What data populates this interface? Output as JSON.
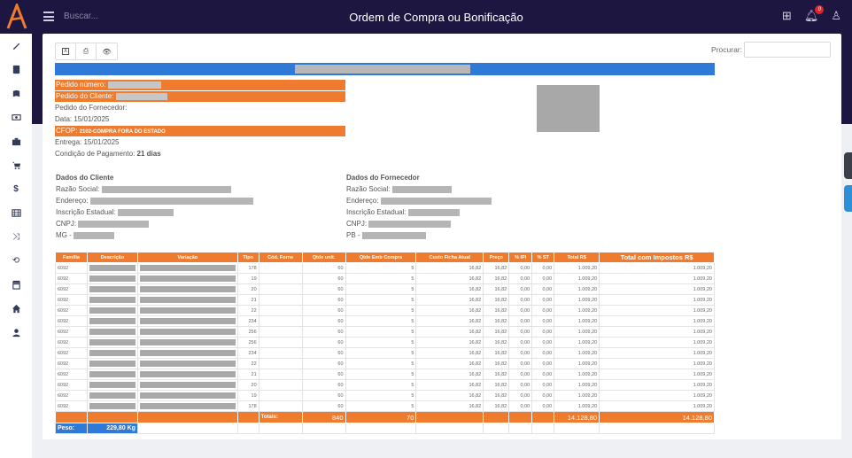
{
  "app": {
    "title": "Ordem de Compra ou Bonificação",
    "search_placeholder": "Buscar...",
    "notification_count": "0"
  },
  "sidebar": {
    "items": [
      "wrench-icon",
      "calculator-icon",
      "book-icon",
      "money-icon",
      "briefcase-icon",
      "cart-icon",
      "dollar-icon",
      "table-icon",
      "shuffle-icon",
      "retweet-icon",
      "store-icon",
      "home-icon",
      "user-icon"
    ]
  },
  "toolbar": {
    "excel_label": "X",
    "print_label": "⎙",
    "view_label": "👁",
    "search_label": "Procurar:"
  },
  "order": {
    "pedido_numero_label": "Pedido número:",
    "pedido_cliente_label": "Pedido do Cliente:",
    "pedido_fornecedor_label": "Pedido do Fornecedor:",
    "data_label": "Data: 15/01/2025",
    "cfop_prefix": "CFOP:",
    "cfop_value": "2102-COMPRA FORA DO ESTADO",
    "entrega_label": "Entrega: 15/01/2025",
    "condicao_label": "Condição de Pagamento:",
    "condicao_value": "21 dias"
  },
  "cliente": {
    "title": "Dados do Cliente",
    "razao": "Razão Social:",
    "endereco": "Endereço:",
    "inscricao": "Inscrição Estadual:",
    "cnpj": "CNPJ:",
    "uf": "MG -"
  },
  "fornecedor": {
    "title": "Dados do Fornecedor",
    "razao": "Razão Social:",
    "endereco": "Endereço:",
    "inscricao": "Inscrição Estadual:",
    "cnpj": "CNPJ:",
    "uf": "PB -"
  },
  "table": {
    "headers": [
      "Família",
      "Descrição",
      "Variação",
      "Tipo",
      "Cód. Forne",
      "Qtde unit.",
      "Qtde Emb Compra",
      "Custo Ficha Atual",
      "Preço",
      "% IPI",
      "% ST",
      "Total R$",
      "Total com Impostos R$"
    ],
    "rows": [
      {
        "familia": "6092",
        "tipo": "178",
        "qtde": "60",
        "emb": "5",
        "custo": "16,82",
        "preco": "16,82",
        "ipi": "0,00",
        "st": "0,00",
        "total": "1.009,20",
        "total_imp": "1.009,20"
      },
      {
        "familia": "6092",
        "tipo": "19",
        "qtde": "60",
        "emb": "5",
        "custo": "16,82",
        "preco": "16,82",
        "ipi": "0,00",
        "st": "0,00",
        "total": "1.009,20",
        "total_imp": "1.009,20"
      },
      {
        "familia": "6092",
        "tipo": "20",
        "qtde": "60",
        "emb": "5",
        "custo": "16,82",
        "preco": "16,82",
        "ipi": "0,00",
        "st": "0,00",
        "total": "1.009,20",
        "total_imp": "1.009,20"
      },
      {
        "familia": "6092",
        "tipo": "21",
        "qtde": "60",
        "emb": "5",
        "custo": "16,82",
        "preco": "16,82",
        "ipi": "0,00",
        "st": "0,00",
        "total": "1.009,20",
        "total_imp": "1.009,20"
      },
      {
        "familia": "6092",
        "tipo": "22",
        "qtde": "60",
        "emb": "5",
        "custo": "16,82",
        "preco": "16,82",
        "ipi": "0,00",
        "st": "0,00",
        "total": "1.009,20",
        "total_imp": "1.009,20"
      },
      {
        "familia": "6092",
        "tipo": "234",
        "qtde": "60",
        "emb": "5",
        "custo": "16,82",
        "preco": "16,82",
        "ipi": "0,00",
        "st": "0,00",
        "total": "1.009,20",
        "total_imp": "1.009,20"
      },
      {
        "familia": "6092",
        "tipo": "256",
        "qtde": "60",
        "emb": "5",
        "custo": "16,82",
        "preco": "16,82",
        "ipi": "0,00",
        "st": "0,00",
        "total": "1.009,20",
        "total_imp": "1.009,20"
      },
      {
        "familia": "6092",
        "tipo": "256",
        "qtde": "60",
        "emb": "5",
        "custo": "16,82",
        "preco": "16,82",
        "ipi": "0,00",
        "st": "0,00",
        "total": "1.009,20",
        "total_imp": "1.009,20"
      },
      {
        "familia": "6092",
        "tipo": "234",
        "qtde": "60",
        "emb": "5",
        "custo": "16,82",
        "preco": "16,82",
        "ipi": "0,00",
        "st": "0,00",
        "total": "1.009,20",
        "total_imp": "1.009,20"
      },
      {
        "familia": "6092",
        "tipo": "22",
        "qtde": "60",
        "emb": "5",
        "custo": "16,82",
        "preco": "16,82",
        "ipi": "0,00",
        "st": "0,00",
        "total": "1.009,20",
        "total_imp": "1.009,20"
      },
      {
        "familia": "6092",
        "tipo": "21",
        "qtde": "60",
        "emb": "5",
        "custo": "16,82",
        "preco": "16,82",
        "ipi": "0,00",
        "st": "0,00",
        "total": "1.009,20",
        "total_imp": "1.009,20"
      },
      {
        "familia": "6092",
        "tipo": "20",
        "qtde": "60",
        "emb": "5",
        "custo": "16,82",
        "preco": "16,82",
        "ipi": "0,00",
        "st": "0,00",
        "total": "1.009,20",
        "total_imp": "1.009,20"
      },
      {
        "familia": "6092",
        "tipo": "19",
        "qtde": "60",
        "emb": "5",
        "custo": "16,82",
        "preco": "16,82",
        "ipi": "0,00",
        "st": "0,00",
        "total": "1.009,20",
        "total_imp": "1.009,20"
      },
      {
        "familia": "6092",
        "tipo": "178",
        "qtde": "60",
        "emb": "5",
        "custo": "16,82",
        "preco": "16,82",
        "ipi": "0,00",
        "st": "0,00",
        "total": "1.009,20",
        "total_imp": "1.009,20"
      }
    ],
    "totals": {
      "label": "Totais:",
      "qtde": "840",
      "emb": "70",
      "total": "14.128,80",
      "total_imp": "14.128,80"
    },
    "peso_label": "Peso:",
    "peso_value": "229,80 Kg"
  },
  "colors": {
    "header_bg": "#1d1640",
    "orange": "#ef7c2e",
    "blue": "#2f7ad6",
    "badge": "#e0242a"
  }
}
